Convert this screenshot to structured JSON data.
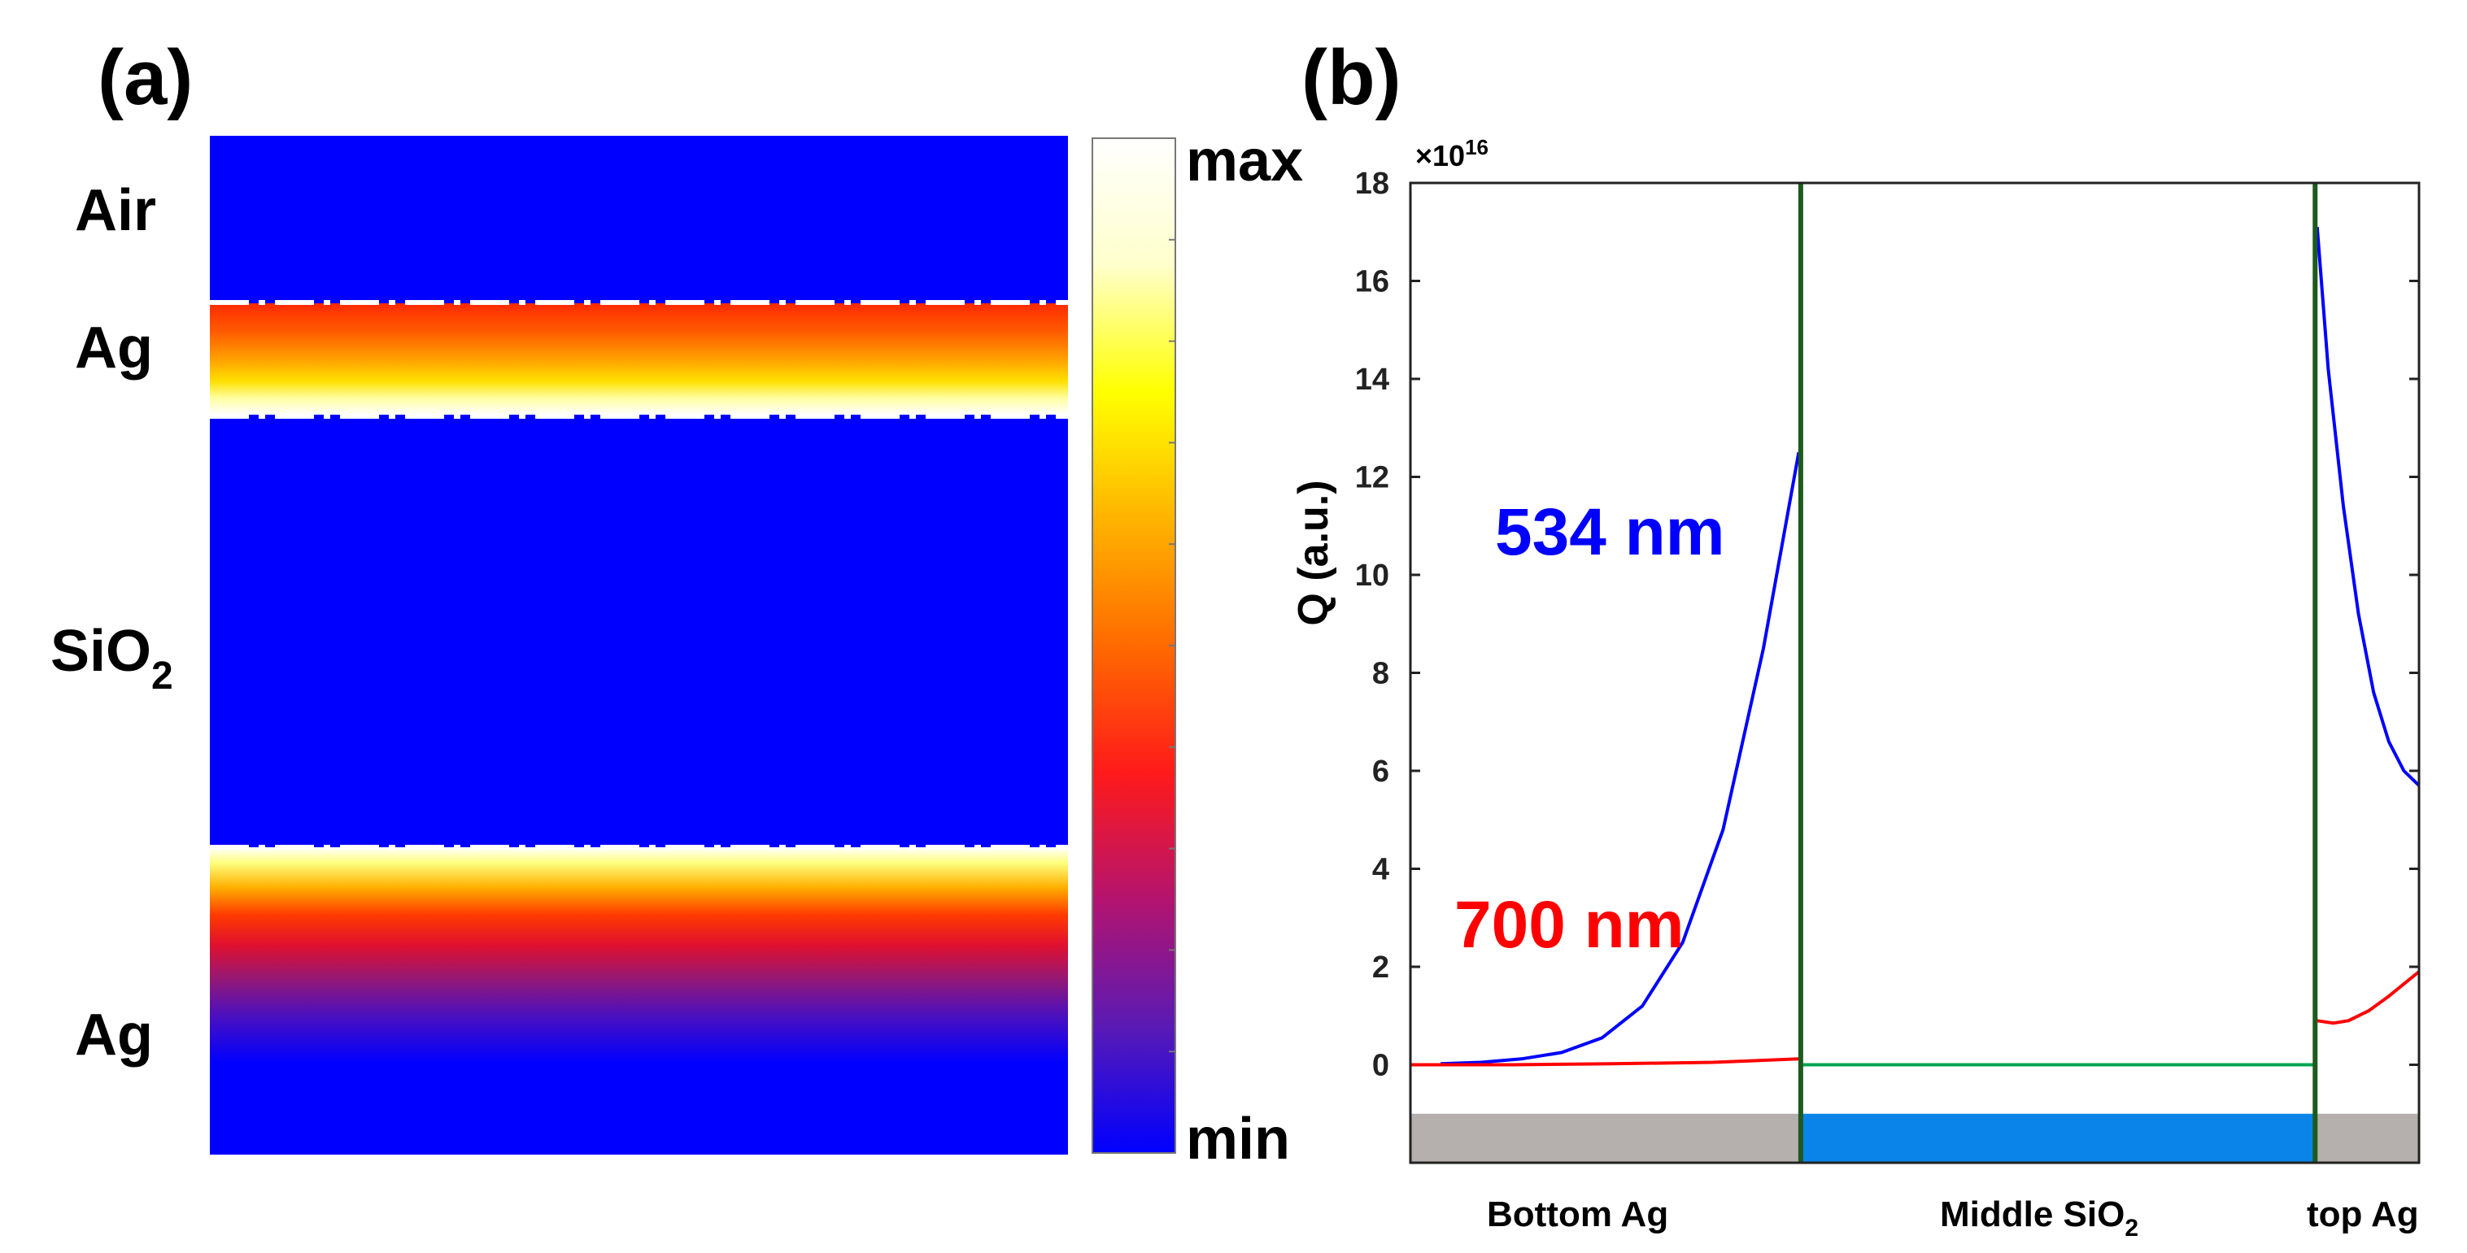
{
  "panel_a": {
    "label": "(a)",
    "layers": [
      "Air",
      "Ag",
      "SiO",
      "Ag"
    ],
    "sio2_subscript": "2",
    "colorbar": {
      "max_label": "max",
      "min_label": "min"
    },
    "colormap": [
      "#0000ff",
      "#5a1ab4",
      "#b4146e",
      "#ff1a1a",
      "#ff6a00",
      "#ffb400",
      "#ffff00",
      "#ffffcc",
      "#ffffff"
    ]
  },
  "panel_b": {
    "label": "(b)",
    "region_labels": {
      "bottom": "Bottom Ag",
      "middle": "Middle SiO",
      "middle_subscript": "2",
      "top": "top Ag"
    },
    "annotations": {
      "blue": "534 nm",
      "red": "700 nm"
    },
    "colors": {
      "blue": "#0000ff",
      "red": "#ff0000",
      "green": "#00a651",
      "boundary": "#1e5a1e",
      "bar_ag": "#b5b0ad",
      "bar_sio2": "#0a84e8"
    }
  },
  "chart_data": {
    "type": "line",
    "title": "",
    "xlabel": "",
    "ylabel": "Q (a.u.)",
    "y_multiplier": "×10",
    "y_multiplier_exponent": "16",
    "ylim": [
      -2,
      18
    ],
    "yticks": [
      0,
      2,
      4,
      6,
      8,
      10,
      12,
      14,
      16,
      18
    ],
    "xlim": [
      0,
      100
    ],
    "series": [
      {
        "name": "534 nm",
        "color": "#0000ff",
        "segments": [
          {
            "region": "Bottom Ag",
            "x": [
              3,
              7,
              11,
              15,
              19,
              23,
              27,
              31,
              35,
              38.5
            ],
            "y": [
              0.02,
              0.05,
              0.12,
              0.25,
              0.55,
              1.2,
              2.5,
              4.8,
              8.5,
              12.5
            ]
          },
          {
            "region": "top Ag",
            "x": [
              89.9,
              91,
              92.5,
              94,
              95.5,
              97,
              98.5,
              100
            ],
            "y": [
              17.1,
              14.2,
              11.4,
              9.2,
              7.6,
              6.6,
              6.0,
              5.7
            ]
          }
        ]
      },
      {
        "name": "700 nm",
        "color": "#ff0000",
        "segments": [
          {
            "region": "Bottom Ag",
            "x": [
              0,
              10,
              20,
              30,
              38.5
            ],
            "y": [
              0.0,
              0.0,
              0.02,
              0.05,
              0.12
            ]
          },
          {
            "region": "top Ag",
            "x": [
              89.9,
              91.5,
              93,
              95,
              97,
              98.5,
              100
            ],
            "y": [
              0.9,
              0.85,
              0.9,
              1.1,
              1.4,
              1.65,
              1.9
            ]
          }
        ]
      },
      {
        "name": "Middle SiO2",
        "color": "#00a651",
        "segments": [
          {
            "region": "Middle SiO2",
            "x": [
              38.8,
              89.6
            ],
            "y": [
              0,
              0
            ]
          }
        ]
      }
    ],
    "boundaries_x": [
      38.7,
      89.7
    ],
    "regions": [
      {
        "name": "Bottom Ag",
        "x": [
          0,
          38.7
        ]
      },
      {
        "name": "Middle SiO2",
        "x": [
          38.7,
          89.7
        ]
      },
      {
        "name": "top Ag",
        "x": [
          89.7,
          100
        ]
      }
    ],
    "region_bar_y": [
      -1.0,
      -2.0
    ]
  }
}
